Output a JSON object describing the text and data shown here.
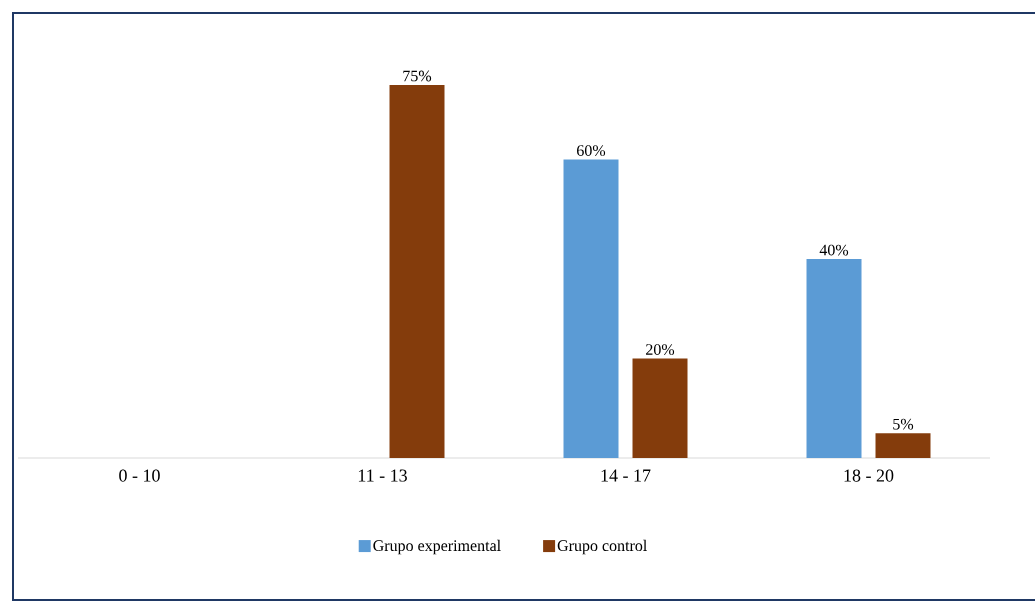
{
  "chart_data": {
    "type": "bar",
    "categories": [
      "0 - 10",
      "11 - 13",
      "14 - 17",
      "18 - 20"
    ],
    "series": [
      {
        "name": "Grupo experimental",
        "color": "#5b9bd5",
        "values": [
          null,
          null,
          60,
          40
        ],
        "value_labels": [
          null,
          null,
          "60%",
          "40%"
        ]
      },
      {
        "name": "Grupo control",
        "color": "#843c0c",
        "values": [
          null,
          75,
          20,
          5
        ],
        "value_labels": [
          null,
          "75%",
          "20%",
          "5%"
        ]
      }
    ],
    "legend": "bottom"
  }
}
